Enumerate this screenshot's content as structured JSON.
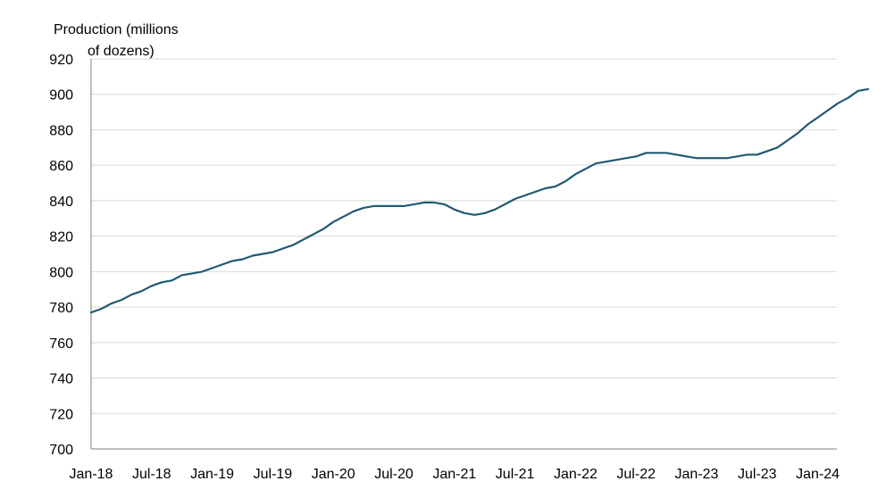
{
  "chart_data": {
    "type": "line",
    "title": "",
    "ylabel_lines": [
      "Production (millions",
      "of dozens)"
    ],
    "xlabel": "",
    "ylim": [
      700,
      920
    ],
    "yticks": [
      700,
      720,
      740,
      760,
      780,
      800,
      820,
      840,
      860,
      880,
      900,
      920
    ],
    "x_tick_labels": [
      "Jan-18",
      "Jul-18",
      "Jan-19",
      "Jul-19",
      "Jan-20",
      "Jul-20",
      "Jan-21",
      "Jul-21",
      "Jan-22",
      "Jul-22",
      "Jan-23",
      "Jul-23",
      "Jan-24"
    ],
    "grid": true,
    "line_color": "#1f5a72",
    "x": [
      "Jan-18",
      "Feb-18",
      "Mar-18",
      "Apr-18",
      "May-18",
      "Jun-18",
      "Jul-18",
      "Aug-18",
      "Sep-18",
      "Oct-18",
      "Nov-18",
      "Dec-18",
      "Jan-19",
      "Feb-19",
      "Mar-19",
      "Apr-19",
      "May-19",
      "Jun-19",
      "Jul-19",
      "Aug-19",
      "Sep-19",
      "Oct-19",
      "Nov-19",
      "Dec-19",
      "Jan-20",
      "Feb-20",
      "Mar-20",
      "Apr-20",
      "May-20",
      "Jun-20",
      "Jul-20",
      "Aug-20",
      "Sep-20",
      "Oct-20",
      "Nov-20",
      "Dec-20",
      "Jan-21",
      "Feb-21",
      "Mar-21",
      "Apr-21",
      "May-21",
      "Jun-21",
      "Jul-21",
      "Aug-21",
      "Sep-21",
      "Oct-21",
      "Nov-21",
      "Dec-21",
      "Jan-22",
      "Feb-22",
      "Mar-22",
      "Apr-22",
      "May-22",
      "Jun-22",
      "Jul-22",
      "Aug-22",
      "Sep-22",
      "Oct-22",
      "Nov-22",
      "Dec-22",
      "Jan-23",
      "Feb-23",
      "Mar-23",
      "Apr-23",
      "May-23",
      "Jun-23",
      "Jul-23",
      "Aug-23",
      "Sep-23",
      "Oct-23",
      "Nov-23",
      "Dec-23",
      "Jan-24",
      "Feb-24",
      "Mar-24",
      "Apr-24",
      "May-24",
      "Jun-24"
    ],
    "series": [
      {
        "values": [
          777,
          779,
          782,
          784,
          787,
          789,
          792,
          794,
          795,
          798,
          799,
          800,
          802,
          804,
          806,
          807,
          809,
          810,
          811,
          813,
          815,
          818,
          821,
          824,
          828,
          831,
          834,
          836,
          837,
          837,
          837,
          837,
          838,
          839,
          839,
          838,
          835,
          833,
          832,
          833,
          835,
          838,
          841,
          843,
          845,
          847,
          848,
          851,
          855,
          858,
          861,
          862,
          863,
          864,
          865,
          867,
          867,
          867,
          866,
          865,
          864,
          864,
          864,
          864,
          865,
          866,
          866,
          868,
          870,
          874,
          878,
          883,
          887,
          891,
          895,
          898,
          902,
          903
        ]
      }
    ]
  }
}
